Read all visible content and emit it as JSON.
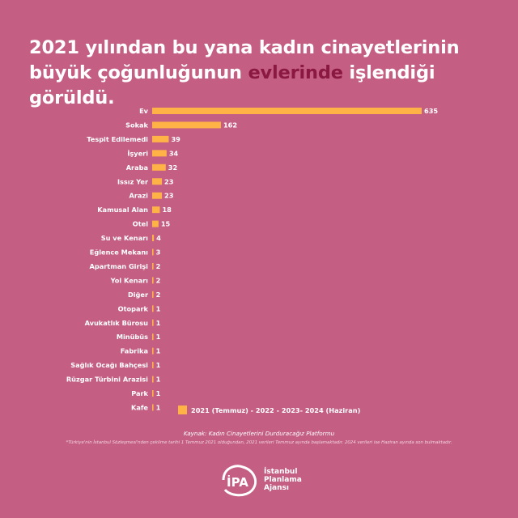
{
  "title": {
    "line1": "2021 yılından bu yana kadın cinayetlerinin",
    "line2_before": "büyük çoğunluğunun ",
    "line2_highlight": "evlerinde",
    "line2_after": " işlendiği görüldü."
  },
  "colors": {
    "background": "#c45f83",
    "bar": "#ffb347",
    "highlight": "#8a1840"
  },
  "chart_data": {
    "type": "bar",
    "orientation": "horizontal",
    "categories": [
      "Ev",
      "Sokak",
      "Tespit Edilemedi",
      "İşyeri",
      "Araba",
      "Issız Yer",
      "Arazi",
      "Kamusal Alan",
      "Otel",
      "Su ve Kenarı",
      "Eğlence Mekanı",
      "Apartman Girişi",
      "Yol Kenarı",
      "Diğer",
      "Otopark",
      "Avukatlık Bürosu",
      "Minübüs",
      "Fabrika",
      "Sağlık Ocağı Bahçesi",
      "Rüzgar Türbini Arazisi",
      "Park",
      "Kafe"
    ],
    "values": [
      635,
      162,
      39,
      34,
      32,
      23,
      23,
      18,
      15,
      4,
      3,
      2,
      2,
      2,
      1,
      1,
      1,
      1,
      1,
      1,
      1,
      1
    ],
    "value_labels": [
      "635",
      "162",
      "39",
      "34",
      "32",
      "23",
      "23",
      "18",
      "15",
      "4",
      "3",
      "2",
      "2",
      "2",
      "1",
      "1",
      "1",
      "1",
      "1",
      "1",
      "1",
      "1"
    ],
    "xlim": [
      0,
      635
    ],
    "grid": false,
    "legend": "bottom",
    "series": [
      {
        "name": "2021 (Temmuz) - 2022 - 2023- 2024 (Haziran)"
      }
    ]
  },
  "legend_label": "2021 (Temmuz) - 2022 - 2023- 2024 (Haziran)",
  "source": "Kaynak: Kadın Cinayetlerini Durduracağız Platformu",
  "note": "*Türkiye'nin İstanbul Sözleşmesi'nden çekilme tarihi 1 Temmuz 2021 olduğundan, 2021 verileri Temmuz ayında başlamaktadır. 2024 verileri ise Haziran ayında son bulmaktadır.",
  "logo": {
    "mark": "İPA",
    "line1": "İstanbul",
    "line2": "Planlama",
    "line3": "Ajansı"
  }
}
